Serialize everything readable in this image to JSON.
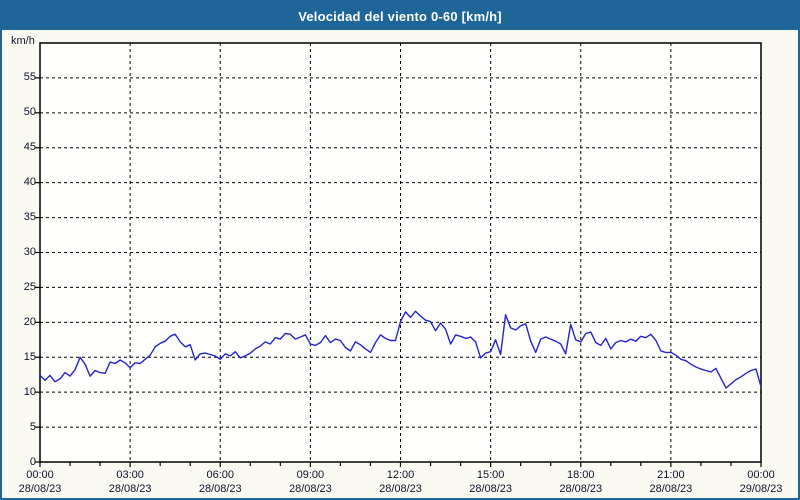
{
  "title": "Velocidad del viento 0-60 [km/h]",
  "unit_label": "km/h",
  "colors": {
    "titlebar": "#1e6598",
    "window_border": "#1e6598",
    "background": "#fafaf2",
    "plot_background": "#fffffe",
    "grid": "#000000",
    "line": "#2424c8",
    "tick_text": "#10102e"
  },
  "chart_data": {
    "type": "line",
    "title": "Velocidad del viento 0-60 [km/h]",
    "ylabel": "km/h",
    "xlabel": "",
    "ylim": [
      0,
      60
    ],
    "yticks": [
      0,
      5,
      10,
      15,
      20,
      25,
      30,
      35,
      40,
      45,
      50,
      55
    ],
    "grid": "dashed, horizontal every 5 km/h, vertical every 3 h",
    "legend_position": "none",
    "x_start": "00:00",
    "x_interval_minutes": 10,
    "x_total_hours": 24,
    "xticks": [
      {
        "time": "00:00",
        "date": "28/08/23"
      },
      {
        "time": "03:00",
        "date": "28/08/23"
      },
      {
        "time": "06:00",
        "date": "28/08/23"
      },
      {
        "time": "09:00",
        "date": "28/08/23"
      },
      {
        "time": "12:00",
        "date": "28/08/23"
      },
      {
        "time": "15:00",
        "date": "28/08/23"
      },
      {
        "time": "18:00",
        "date": "28/08/23"
      },
      {
        "time": "21:00",
        "date": "28/08/23"
      },
      {
        "time": "00:00",
        "date": "29/08/23"
      }
    ],
    "series": [
      {
        "name": "Velocidad del viento",
        "color": "#2424c8",
        "values": [
          12.4,
          11.7,
          12.4,
          11.5,
          11.9,
          12.8,
          12.3,
          13.2,
          15.0,
          14.0,
          12.3,
          13.1,
          12.8,
          12.7,
          14.3,
          14.1,
          14.6,
          14.2,
          13.5,
          14.2,
          14.1,
          14.7,
          15.3,
          16.5,
          17.0,
          17.3,
          18.0,
          18.3,
          17.2,
          16.5,
          16.8,
          14.6,
          15.5,
          15.6,
          15.4,
          15.2,
          14.7,
          15.5,
          15.2,
          15.8,
          14.9,
          15.2,
          15.6,
          16.2,
          16.6,
          17.2,
          16.9,
          17.8,
          17.6,
          18.4,
          18.3,
          17.6,
          17.9,
          18.2,
          16.9,
          16.7,
          17.1,
          18.1,
          17.1,
          17.6,
          17.4,
          16.4,
          15.9,
          17.2,
          16.8,
          16.2,
          15.7,
          17.1,
          18.2,
          17.7,
          17.4,
          17.4,
          20.1,
          21.5,
          20.7,
          21.6,
          20.9,
          20.3,
          20.1,
          18.8,
          19.9,
          19.0,
          16.9,
          18.2,
          18.0,
          17.7,
          17.9,
          17.2,
          14.9,
          15.6,
          15.8,
          17.5,
          15.4,
          21.1,
          19.2,
          18.9,
          19.5,
          19.8,
          17.3,
          15.7,
          17.6,
          17.9,
          17.6,
          17.3,
          16.9,
          15.5,
          19.7,
          17.5,
          17.2,
          18.4,
          18.6,
          17.1,
          16.7,
          17.7,
          16.2,
          17.1,
          17.4,
          17.2,
          17.6,
          17.3,
          18.0,
          17.8,
          18.3,
          17.4,
          15.9,
          15.7,
          15.7,
          15.3,
          14.7,
          14.5,
          14.0,
          13.6,
          13.3,
          13.1,
          12.9,
          13.4,
          12.0,
          10.6,
          11.2,
          11.8,
          12.2,
          12.7,
          13.1,
          13.3,
          10.8
        ]
      }
    ]
  }
}
